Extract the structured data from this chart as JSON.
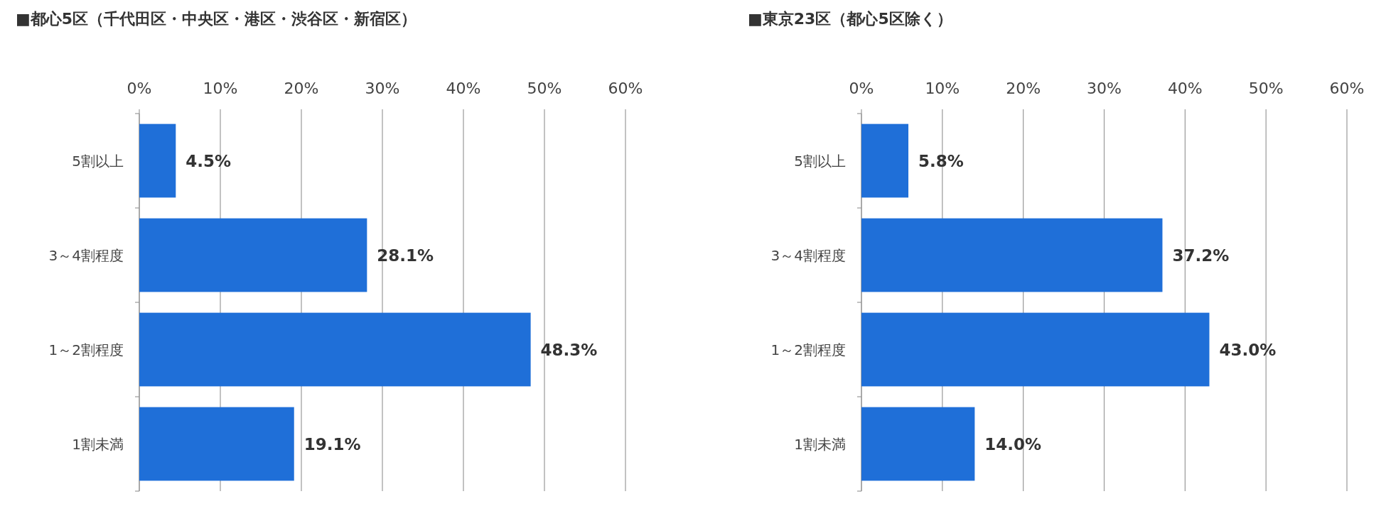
{
  "chart_data": [
    {
      "type": "bar",
      "orientation": "horizontal",
      "title": "■都心5区（千代田区・中央区・港区・渋谷区・新宿区）",
      "categories": [
        "5割以上",
        "3～4割程度",
        "1～2割程度",
        "1割未満"
      ],
      "values": [
        4.5,
        28.1,
        48.3,
        19.1
      ],
      "value_labels": [
        "4.5%",
        "28.1%",
        "48.3%",
        "19.1%"
      ],
      "color": "#1f6fd8",
      "xlim": [
        0,
        60
      ],
      "xticks": [
        {
          "value": 0,
          "label": "0%"
        },
        {
          "value": 10,
          "label": "10%"
        },
        {
          "value": 20,
          "label": "20%"
        },
        {
          "value": 30,
          "label": "30%"
        },
        {
          "value": 40,
          "label": "40%"
        },
        {
          "value": 50,
          "label": "50%"
        },
        {
          "value": 60,
          "label": "60%"
        }
      ],
      "grid": "x"
    },
    {
      "type": "bar",
      "orientation": "horizontal",
      "title": "■東京23区（都心5区除く）",
      "categories": [
        "5割以上",
        "3～4割程度",
        "1～2割程度",
        "1割未満"
      ],
      "values": [
        5.8,
        37.2,
        43.0,
        14.0
      ],
      "value_labels": [
        "5.8%",
        "37.2%",
        "43.0%",
        "14.0%"
      ],
      "color": "#1f6fd8",
      "xlim": [
        0,
        60
      ],
      "xticks": [
        {
          "value": 0,
          "label": "0%"
        },
        {
          "value": 10,
          "label": "10%"
        },
        {
          "value": 20,
          "label": "20%"
        },
        {
          "value": 30,
          "label": "30%"
        },
        {
          "value": 40,
          "label": "40%"
        },
        {
          "value": 50,
          "label": "50%"
        },
        {
          "value": 60,
          "label": "60%"
        }
      ],
      "grid": "x"
    }
  ]
}
